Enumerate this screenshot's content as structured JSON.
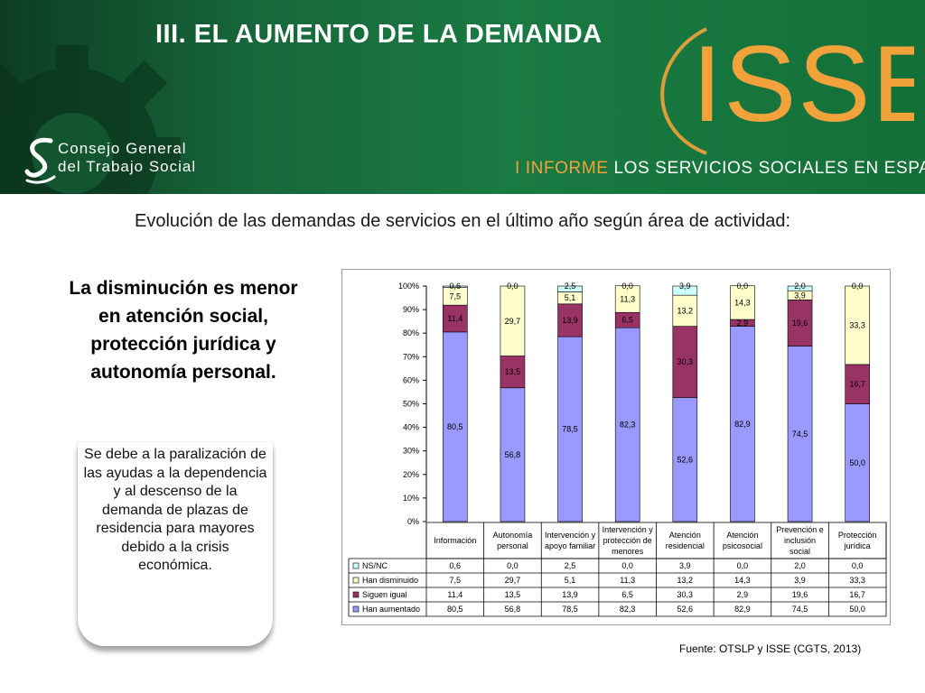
{
  "header": {
    "title": "III. EL AUMENTO DE LA DEMANDA",
    "org_line1": "Consejo General",
    "org_line2": "del Trabajo Social",
    "brand": "ISSE",
    "report_highlight": "I INFORME",
    "report_rest": "LOS SERVICIOS SOCIALES EN ESPAÑA"
  },
  "subtitle": "Evolución de las demandas de servicios en el último año según área de actividad:",
  "left_heading": "La disminución es menor en atención social, protección jurídica y autonomía personal.",
  "reason_text": "Se debe a la paralización de las ayudas a la dependencia y al descenso de la demanda de plazas de residencia para mayores debido a la crisis económica.",
  "source": "Fuente: OTSLP y ISSE (CGTS, 2013)",
  "colors": {
    "banner_green": "#1a7a43",
    "orange": "#f2a23b",
    "ns_nc": "#ccffff",
    "han_disminuido": "#ffffcc",
    "siguen_igual": "#993366",
    "han_aumentado": "#9999ff"
  },
  "chart_data": {
    "type": "bar",
    "stacked": true,
    "percent": true,
    "categories": [
      [
        "Información"
      ],
      [
        "Autonomía",
        "personal"
      ],
      [
        "Intervención y",
        "apoyo familiar"
      ],
      [
        "Intervención y",
        "protección de",
        "menores"
      ],
      [
        "Atención",
        "residencial"
      ],
      [
        "Atención",
        "psicosocial"
      ],
      [
        "Prevención e",
        "inclusión",
        "social"
      ],
      [
        "Protección",
        "jurídica"
      ]
    ],
    "series": [
      {
        "name": "Han aumentado",
        "color": "#9999ff",
        "values": [
          80.5,
          56.8,
          78.5,
          82.3,
          52.6,
          82.9,
          74.5,
          50.0
        ]
      },
      {
        "name": "Siguen igual",
        "color": "#993366",
        "values": [
          11.4,
          13.5,
          13.9,
          6.5,
          30.3,
          2.9,
          19.6,
          16.7
        ]
      },
      {
        "name": "Han disminuido",
        "color": "#ffffcc",
        "values": [
          7.5,
          29.7,
          5.1,
          11.3,
          13.2,
          14.3,
          3.9,
          33.3
        ]
      },
      {
        "name": "NS/NC",
        "color": "#ccffff",
        "values": [
          0.6,
          0.0,
          2.5,
          0.0,
          3.9,
          0.0,
          2.0,
          0.0
        ]
      }
    ],
    "table_order": [
      "NS/NC",
      "Han disminuido",
      "Siguen igual",
      "Han aumentado"
    ],
    "y_ticks": [
      "0%",
      "10%",
      "20%",
      "30%",
      "40%",
      "50%",
      "60%",
      "70%",
      "80%",
      "90%",
      "100%"
    ],
    "ylim": [
      0,
      100
    ],
    "legend": "data-table-left"
  }
}
